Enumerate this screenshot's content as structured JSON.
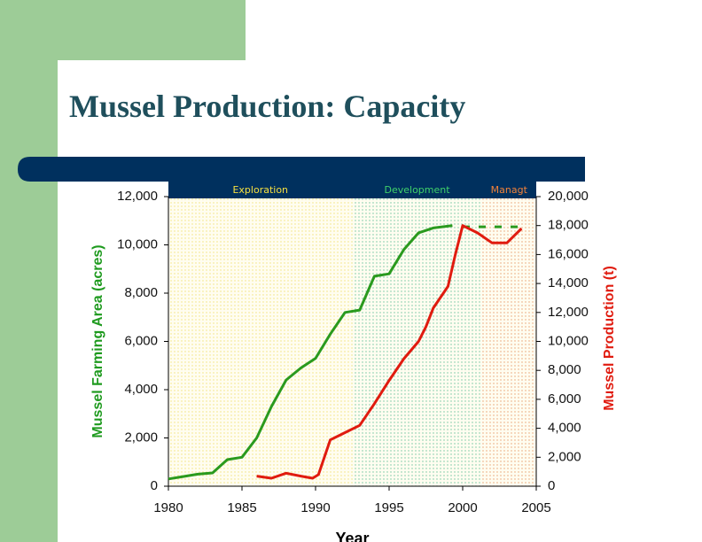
{
  "chart_data": {
    "type": "line",
    "title": "Mussel Production: Capacity",
    "xlabel": "Year",
    "ylabel": "Mussel Farming Area (acres)",
    "y2label": "Mussel Production (t)",
    "xlim": [
      1980,
      2005
    ],
    "xticks": [
      1980,
      1985,
      1990,
      1995,
      2000,
      2005
    ],
    "ylim": [
      0,
      12000
    ],
    "yticks": [
      0,
      {
        "value": 2000,
        "label": "2,000"
      },
      {
        "value": 4000,
        "label": "4,000"
      },
      {
        "value": 6000,
        "label": "6,000"
      },
      {
        "value": 8000,
        "label": "8,000"
      },
      {
        "value": 10000,
        "label": "10,000"
      },
      {
        "value": 12000,
        "label": "12,000"
      }
    ],
    "y2lim": [
      0,
      20000
    ],
    "y2ticks": [
      0,
      {
        "value": 2000,
        "label": "2,000"
      },
      {
        "value": 4000,
        "label": "4,000"
      },
      {
        "value": 6000,
        "label": "6,000"
      },
      {
        "value": 8000,
        "label": "8,000"
      },
      {
        "value": 10000,
        "label": "10,000"
      },
      {
        "value": 12000,
        "label": "12,000"
      },
      {
        "value": 14000,
        "label": "14,000"
      },
      {
        "value": 16000,
        "label": "16,000"
      },
      {
        "value": 18000,
        "label": "18,000"
      },
      {
        "value": 20000,
        "label": "20,000"
      }
    ],
    "ylabel_color": "#1e9a1e",
    "y2label_color": "#e01b0f",
    "regions": [
      {
        "label": "Exploration",
        "start": 1980,
        "end": 1992.5,
        "color": "#f2e27a",
        "label_color": "#f5e040"
      },
      {
        "label": "Development",
        "start": 1992.5,
        "end": 2001.3,
        "color": "#6fc6a0",
        "label_color": "#3fd16a"
      },
      {
        "label": "Managt",
        "start": 2001.3,
        "end": 2005,
        "color": "#e8a070",
        "label_color": "#f0823a"
      }
    ],
    "series": [
      {
        "color": "#2a9a1e",
        "axis": "y",
        "x": [
          1980,
          1981,
          1982,
          1983,
          1984,
          1985,
          1986,
          1987,
          1988,
          1989,
          1990,
          1991,
          1992,
          1993,
          1994,
          1995,
          1996,
          1997,
          1998,
          1999.3
        ],
        "values": [
          300,
          400,
          500,
          550,
          1100,
          1200,
          2000,
          3300,
          4400,
          4900,
          5300,
          6300,
          7200,
          7300,
          8700,
          8800,
          9800,
          10500,
          10700,
          10800
        ]
      },
      {
        "color": "#2a9a1e",
        "axis": "y",
        "dashed": true,
        "x": [
          2000,
          2004.3
        ],
        "values": [
          10750,
          10750
        ]
      },
      {
        "color": "#e01b0f",
        "axis": "y2",
        "x": [
          1986,
          1987,
          1988,
          1989,
          1989.8,
          1990.2,
          1991,
          1992,
          1993,
          1994,
          1995,
          1996,
          1997,
          1997.5,
          1998,
          1999,
          1999.5,
          2000,
          2001,
          2002,
          2003,
          2004
        ],
        "values": [
          700,
          550,
          900,
          700,
          550,
          800,
          3200,
          3700,
          4200,
          5700,
          7300,
          8800,
          10000,
          11000,
          12300,
          13800,
          16000,
          18000,
          17500,
          16800,
          16800,
          17800
        ]
      }
    ]
  }
}
